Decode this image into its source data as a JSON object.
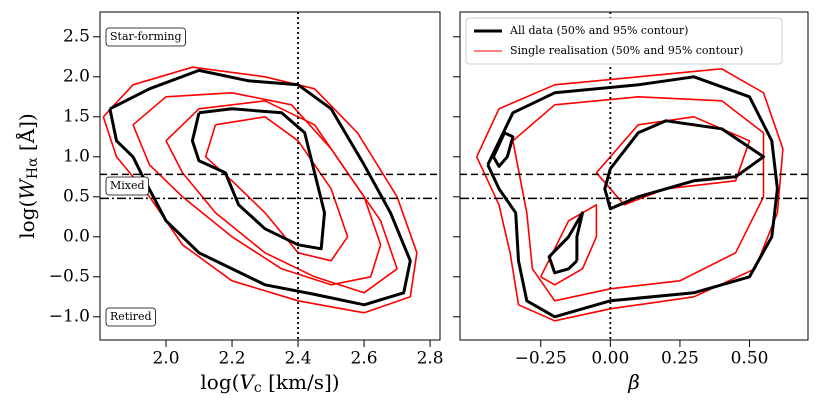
{
  "chart_data": [
    {
      "type": "line",
      "xlabel": [
        "log(",
        "V",
        "c",
        " [km/s])"
      ],
      "ylabel": [
        "log(",
        "W",
        "Hα",
        " [Å])"
      ],
      "xlim": [
        1.8,
        2.83
      ],
      "ylim": [
        -1.29,
        2.81
      ],
      "xticks": [
        {
          "value": 2,
          "label": "2.0"
        },
        2.2,
        2.4,
        2.6,
        2.8
      ],
      "yticks": [
        {
          "value": -1,
          "label": "−1.0"
        },
        {
          "value": -0.5,
          "label": "−0.5"
        },
        {
          "value": 0,
          "label": "0.0"
        },
        0.5,
        {
          "value": 1,
          "label": "1.0"
        },
        1.5,
        {
          "value": 2,
          "label": "2.0"
        },
        2.5
      ],
      "hlines": [
        {
          "y": 0.78,
          "style": "dashed"
        },
        {
          "y": 0.48,
          "style": "dashdot"
        }
      ],
      "vline": {
        "x": 2.4,
        "style": "dotted"
      },
      "annotations": [
        "Star-forming",
        "Mixed",
        "Retired"
      ],
      "series": [
        {
          "name": "All data (50% and 95% contour)",
          "color": "#000000",
          "linewidth": 3,
          "x": [
            1.83,
            1.95,
            2.1,
            2.25,
            2.4,
            2.5,
            2.6,
            2.68,
            2.74,
            2.72,
            2.6,
            2.45,
            2.3,
            2.1,
            2.0,
            1.93,
            1.9,
            1.85,
            1.83
          ],
          "y": [
            1.6,
            1.85,
            2.08,
            1.95,
            1.9,
            1.6,
            0.9,
            0.3,
            -0.3,
            -0.7,
            -0.85,
            -0.72,
            -0.6,
            -0.2,
            0.2,
            0.75,
            1.0,
            1.2,
            1.6
          ]
        },
        {
          "name": "All data (50% and 95% contour)",
          "color": "#000000",
          "linewidth": 3,
          "x": [
            2.1,
            2.2,
            2.35,
            2.42,
            2.45,
            2.48,
            2.47,
            2.4,
            2.3,
            2.22,
            2.18,
            2.1,
            2.08,
            2.1
          ],
          "y": [
            1.55,
            1.6,
            1.55,
            1.3,
            0.8,
            0.3,
            -0.15,
            -0.1,
            0.1,
            0.4,
            0.8,
            0.95,
            1.2,
            1.55
          ]
        },
        {
          "name": "Single realisation (50% and 95% contour)",
          "color": "#ff0000",
          "linewidth": 1,
          "x": [
            1.81,
            1.9,
            2.08,
            2.3,
            2.45,
            2.58,
            2.7,
            2.76,
            2.74,
            2.6,
            2.4,
            2.2,
            2.05,
            1.95,
            1.85,
            1.81
          ],
          "y": [
            1.5,
            1.9,
            2.12,
            2.0,
            1.85,
            1.3,
            0.5,
            -0.2,
            -0.75,
            -0.95,
            -0.8,
            -0.55,
            -0.1,
            0.5,
            1.0,
            1.5
          ]
        },
        {
          "name": "Single realisation (50% and 95% contour)",
          "color": "#ff0000",
          "linewidth": 1,
          "x": [
            1.9,
            2.0,
            2.2,
            2.38,
            2.5,
            2.6,
            2.65,
            2.62,
            2.5,
            2.35,
            2.2,
            2.05,
            1.95,
            1.9
          ],
          "y": [
            1.4,
            1.75,
            1.8,
            1.65,
            1.1,
            0.5,
            -0.1,
            -0.5,
            -0.6,
            -0.4,
            0.0,
            0.5,
            0.9,
            1.4
          ]
        },
        {
          "name": "Single realisation (50% and 95% contour)",
          "color": "#ff0000",
          "linewidth": 1,
          "x": [
            2.15,
            2.3,
            2.4,
            2.5,
            2.55,
            2.5,
            2.4,
            2.3,
            2.2,
            2.12,
            2.15
          ],
          "y": [
            1.4,
            1.5,
            1.2,
            0.6,
            0.0,
            -0.3,
            -0.2,
            0.3,
            0.7,
            1.0,
            1.4
          ]
        },
        {
          "name": "Single realisation (50% and 95% contour)",
          "color": "#ff0000",
          "linewidth": 1,
          "x": [
            2.0,
            2.1,
            2.3,
            2.45,
            2.55,
            2.65,
            2.7,
            2.6,
            2.45,
            2.3,
            2.15,
            2.05,
            2.0
          ],
          "y": [
            1.2,
            1.6,
            1.7,
            1.4,
            0.8,
            0.2,
            -0.4,
            -0.7,
            -0.5,
            -0.2,
            0.3,
            0.8,
            1.2
          ]
        }
      ]
    },
    {
      "type": "line",
      "xlabel": [
        "β"
      ],
      "xlim": [
        -0.54,
        0.71
      ],
      "ylim": [
        -1.29,
        2.81
      ],
      "xticks": [
        {
          "value": -0.25,
          "label": "−0.25"
        },
        {
          "value": 0,
          "label": "0.00"
        },
        0.25,
        {
          "value": 0.5,
          "label": "0.50"
        }
      ],
      "yticks": [
        -1,
        -0.5,
        0,
        0.5,
        1,
        1.5,
        2,
        2.5
      ],
      "hlines": [
        {
          "y": 0.78,
          "style": "dashed"
        },
        {
          "y": 0.48,
          "style": "dashdot"
        }
      ],
      "vline": {
        "x": 0,
        "style": "dotted"
      },
      "legend": "upper left",
      "series": [
        {
          "name": "All data (50% and 95% contour)",
          "color": "#000000",
          "linewidth": 3,
          "x": [
            -0.44,
            -0.35,
            -0.2,
            0.1,
            0.3,
            0.5,
            0.58,
            0.6,
            0.58,
            0.5,
            0.3,
            0.0,
            -0.2,
            -0.3,
            -0.33,
            -0.34,
            -0.4,
            -0.44
          ],
          "y": [
            0.9,
            1.55,
            1.8,
            1.9,
            2.0,
            1.75,
            1.2,
            0.6,
            0.0,
            -0.5,
            -0.7,
            -0.8,
            -1.0,
            -0.8,
            -0.3,
            0.3,
            0.6,
            0.9
          ]
        },
        {
          "name": "All data (50% and 95% contour)",
          "color": "#000000",
          "linewidth": 3,
          "x": [
            0.0,
            0.1,
            0.2,
            0.4,
            0.55,
            0.45,
            0.3,
            0.1,
            0.0,
            -0.02,
            0.0
          ],
          "y": [
            0.85,
            1.3,
            1.45,
            1.35,
            1.0,
            0.75,
            0.7,
            0.5,
            0.35,
            0.6,
            0.85
          ]
        },
        {
          "name": "All data (50% and 95% contour)",
          "color": "#000000",
          "linewidth": 3,
          "x": [
            -0.12,
            -0.12,
            -0.1,
            -0.15,
            -0.22,
            -0.2,
            -0.15,
            -0.12
          ],
          "y": [
            -0.3,
            0.0,
            0.3,
            0.0,
            -0.25,
            -0.45,
            -0.4,
            -0.3
          ]
        },
        {
          "name": "All data (50% and 95% contour)",
          "color": "#000000",
          "linewidth": 3,
          "x": [
            -0.42,
            -0.38,
            -0.35,
            -0.37,
            -0.4,
            -0.42
          ],
          "y": [
            1.0,
            1.3,
            1.25,
            1.0,
            0.88,
            1.0
          ]
        },
        {
          "name": "Single realisation (50% and 95% contour)",
          "color": "#ff0000",
          "linewidth": 1,
          "x": [
            -0.48,
            -0.4,
            -0.2,
            0.1,
            0.4,
            0.55,
            0.62,
            0.6,
            0.52,
            0.3,
            0.0,
            -0.2,
            -0.33,
            -0.36,
            -0.4,
            -0.48
          ],
          "y": [
            1.0,
            1.6,
            1.9,
            2.0,
            2.1,
            1.8,
            1.1,
            0.3,
            -0.4,
            -0.75,
            -0.9,
            -1.05,
            -0.85,
            -0.2,
            0.4,
            1.0
          ]
        },
        {
          "name": "Single realisation (50% and 95% contour)",
          "color": "#ff0000",
          "linewidth": 1,
          "x": [
            -0.35,
            -0.2,
            0.1,
            0.4,
            0.55,
            0.55,
            0.45,
            0.25,
            0.0,
            -0.2,
            -0.28,
            -0.3,
            -0.35
          ],
          "y": [
            1.2,
            1.65,
            1.75,
            1.7,
            1.3,
            0.5,
            -0.2,
            -0.55,
            -0.65,
            -0.8,
            -0.4,
            0.3,
            1.2
          ]
        },
        {
          "name": "Single realisation (50% and 95% contour)",
          "color": "#ff0000",
          "linewidth": 1,
          "x": [
            -0.05,
            0.1,
            0.3,
            0.5,
            0.45,
            0.2,
            0.05,
            -0.05
          ],
          "y": [
            0.8,
            1.4,
            1.5,
            1.2,
            0.7,
            0.6,
            0.4,
            0.8
          ]
        },
        {
          "name": "Single realisation (50% and 95% contour)",
          "color": "#ff0000",
          "linewidth": 1,
          "x": [
            -0.25,
            -0.15,
            -0.05,
            -0.05,
            -0.1,
            -0.2,
            -0.25
          ],
          "y": [
            -0.5,
            0.2,
            0.4,
            0.0,
            -0.4,
            -0.6,
            -0.5
          ]
        }
      ]
    }
  ]
}
